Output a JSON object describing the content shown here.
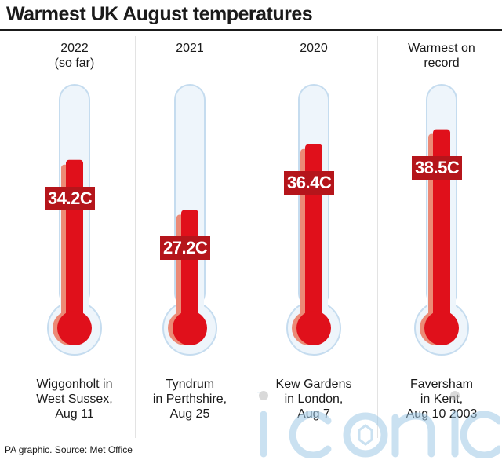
{
  "title": "Warmest UK August temperatures",
  "source": "PA graphic. Source: Met Office",
  "watermark": "iconic",
  "colors": {
    "mercury": "#e0101b",
    "mercury_shade": "#ec8a76",
    "label_bg": "#b5151b",
    "tube_fill": "#eef5fb",
    "tube_border": "#c5dcef"
  },
  "chart_data": {
    "type": "bar",
    "title": "Warmest UK August temperatures",
    "categories": [
      "2022\n(so far)",
      "2021",
      "2020",
      "Warmest on\nrecord"
    ],
    "values": [
      34.2,
      27.2,
      36.4,
      38.5
    ],
    "value_labels": [
      "34.2C",
      "27.2C",
      "36.4C",
      "38.5C"
    ],
    "places": [
      "Wiggonholt in\nWest Sussex,\nAug 11",
      "Tyndrum\nin Perthshire,\nAug 25",
      "Kew Gardens\nin London,\nAug 7",
      "Faversham\nin Kent,\nAug 10 2003"
    ],
    "unit": "C",
    "grid": false,
    "legend": "none"
  }
}
